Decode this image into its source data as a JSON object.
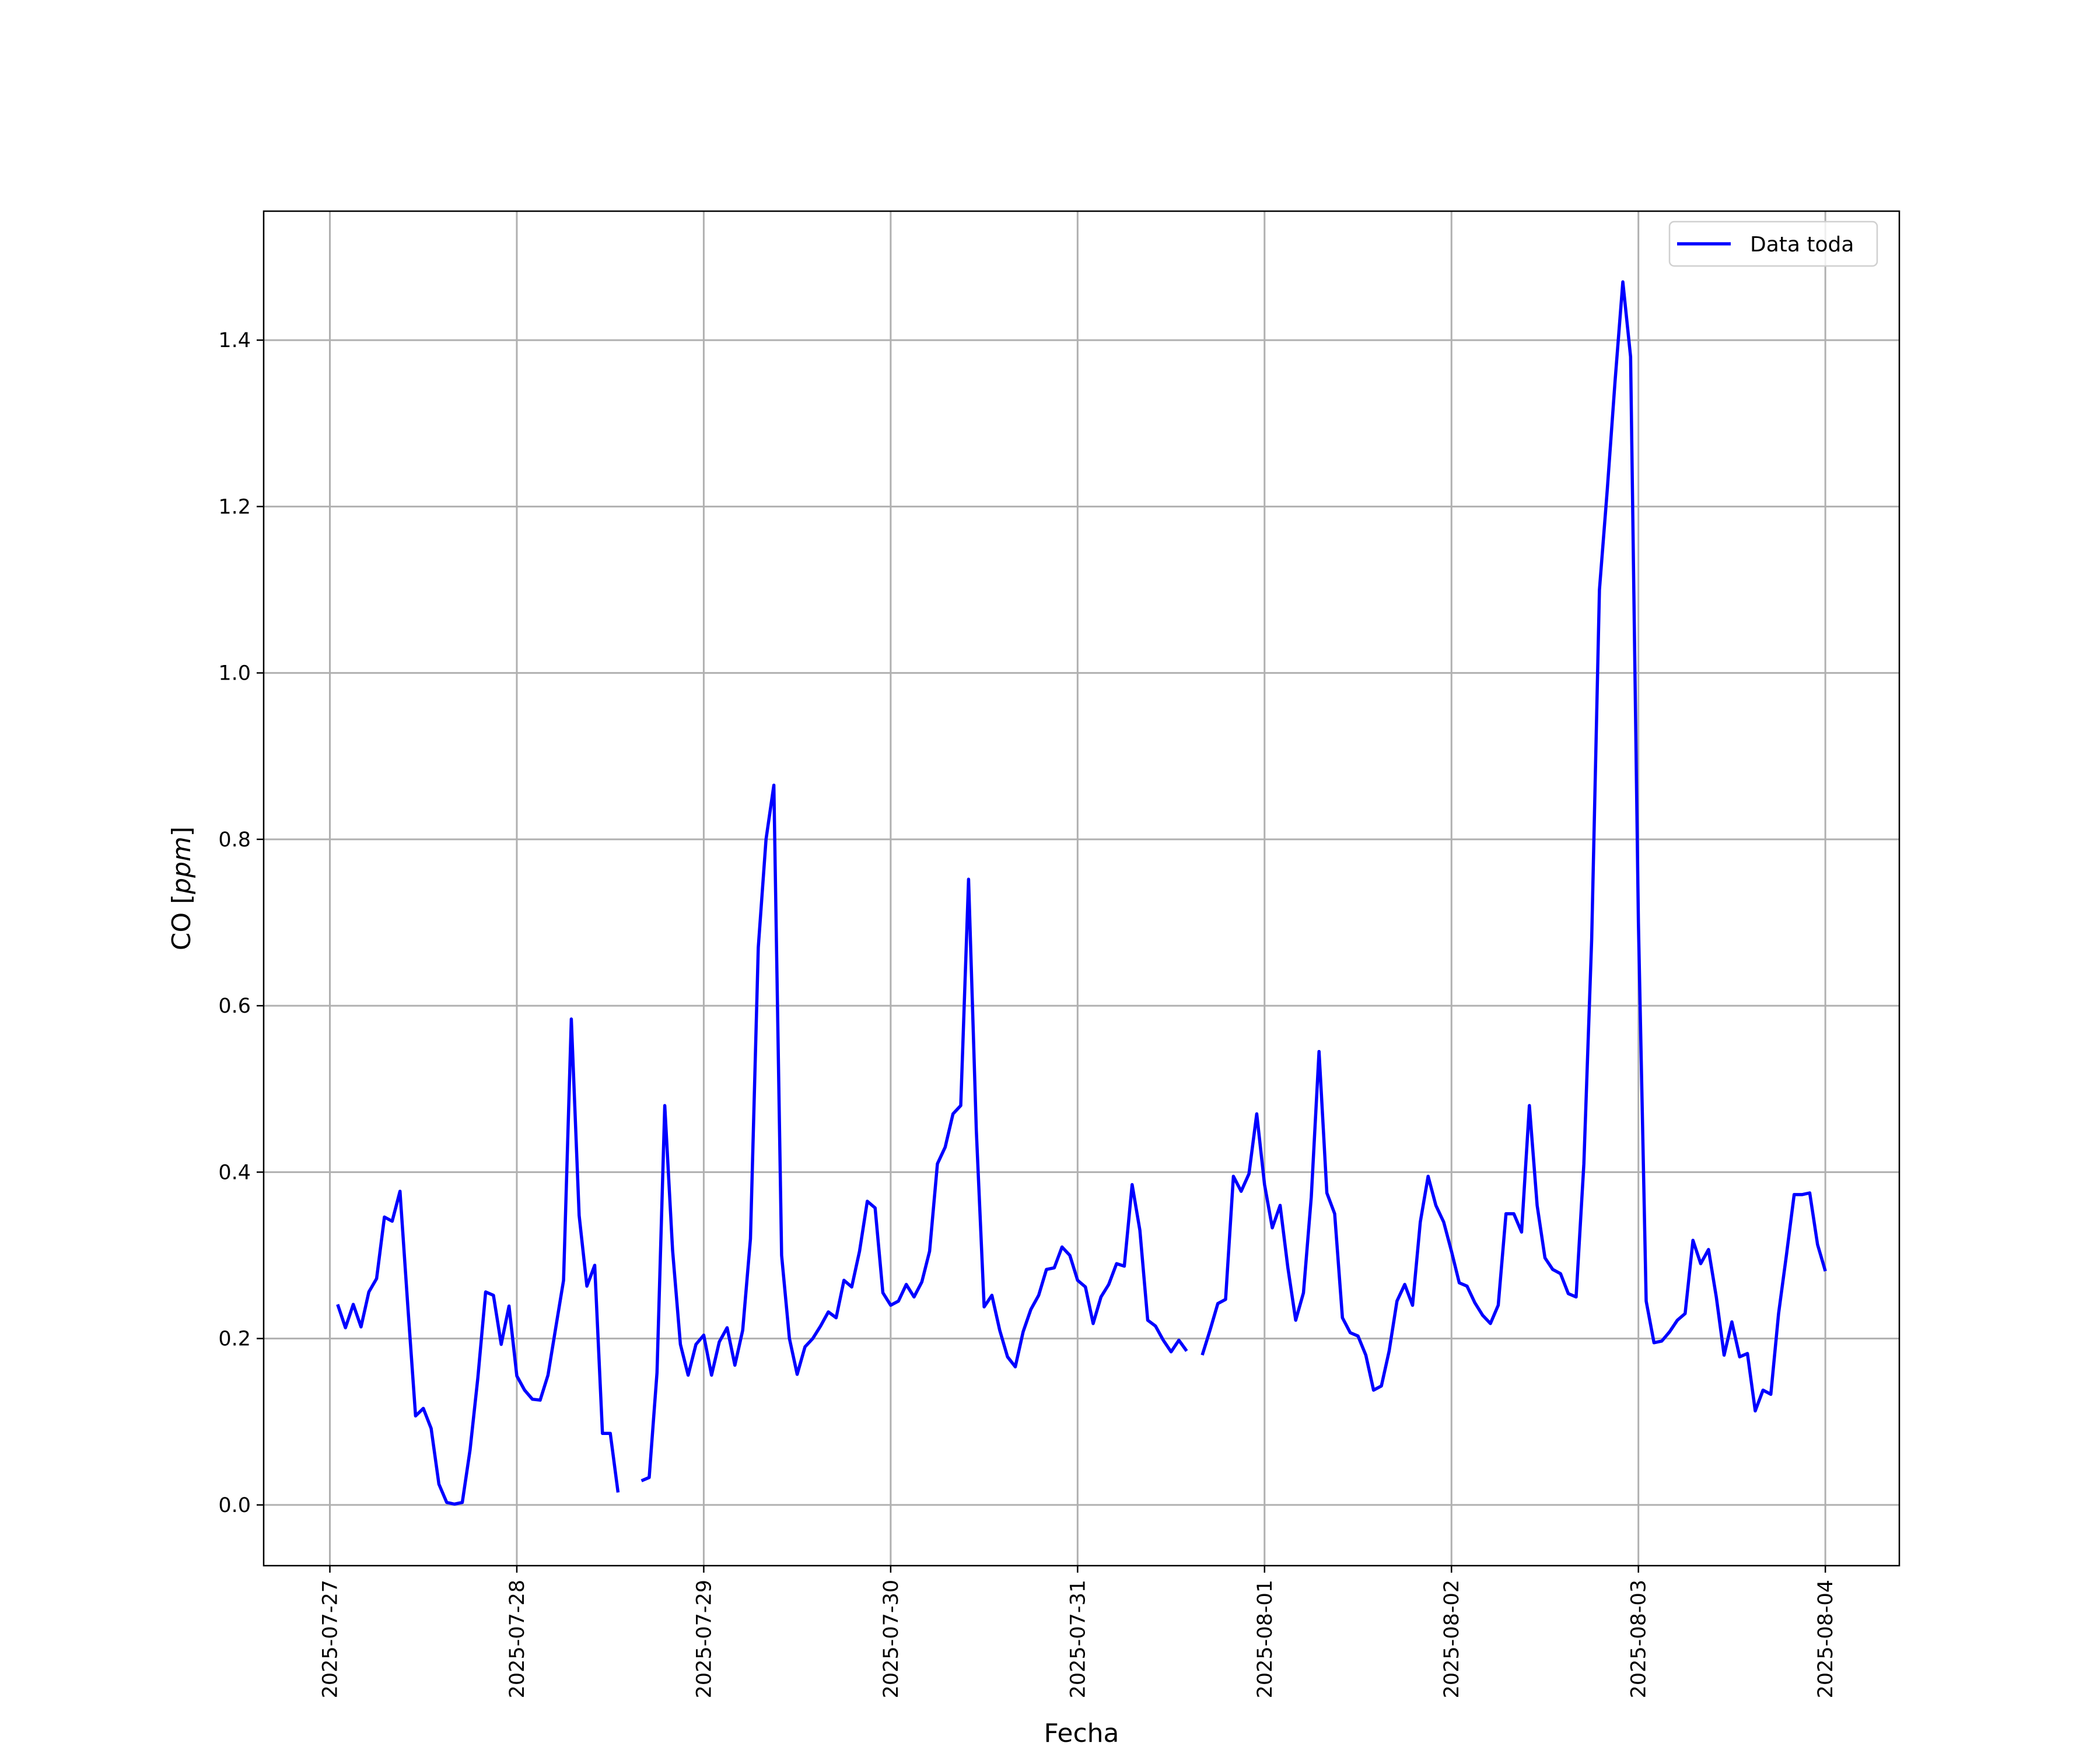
{
  "chart_data": {
    "type": "line",
    "title": "",
    "xlabel": "Fecha",
    "ylabel_main": "CO [",
    "ylabel_unit": "ppm",
    "ylabel_close": "]",
    "xlim": [
      "2025-07-26 15:30",
      "2025-08-04 09:30"
    ],
    "ylim": [
      -0.073,
      1.555
    ],
    "grid": true,
    "legend_position": "top-right",
    "line_color": "#0000ff",
    "grid_color": "#b0b0b0",
    "x_ticks": [
      "2025-07-27",
      "2025-07-28",
      "2025-07-29",
      "2025-07-30",
      "2025-07-31",
      "2025-08-01",
      "2025-08-02",
      "2025-08-03",
      "2025-08-04"
    ],
    "y_ticks": [
      0.0,
      0.2,
      0.4,
      0.6,
      0.8,
      1.0,
      1.2,
      1.4
    ],
    "y_tick_labels": [
      "0.0",
      "0.2",
      "0.4",
      "0.6",
      "0.8",
      "1.0",
      "1.2",
      "1.4"
    ],
    "series": [
      {
        "name": "Data toda",
        "x": [
          "2025-07-27 01:00",
          "2025-07-27 02:00",
          "2025-07-27 03:00",
          "2025-07-27 04:00",
          "2025-07-27 05:00",
          "2025-07-27 06:00",
          "2025-07-27 07:00",
          "2025-07-27 08:00",
          "2025-07-27 09:00",
          "2025-07-27 10:00",
          "2025-07-27 11:00",
          "2025-07-27 12:00",
          "2025-07-27 13:00",
          "2025-07-27 14:00",
          "2025-07-27 15:00",
          "2025-07-27 16:00",
          "2025-07-27 17:00",
          "2025-07-27 18:00",
          "2025-07-27 19:00",
          "2025-07-27 20:00",
          "2025-07-27 21:00",
          "2025-07-27 22:00",
          "2025-07-27 23:00",
          "2025-07-28 00:00",
          "2025-07-28 01:00",
          "2025-07-28 02:00",
          "2025-07-28 03:00",
          "2025-07-28 04:00",
          "2025-07-28 05:00",
          "2025-07-28 06:00",
          "2025-07-28 07:00",
          "2025-07-28 08:00",
          "2025-07-28 09:00",
          "2025-07-28 10:00",
          "2025-07-28 11:00",
          "2025-07-28 12:00",
          "2025-07-28 13:00",
          "2025-07-28 14:00",
          "2025-07-28 15:00",
          "2025-07-28 16:00",
          "2025-07-28 17:00",
          "2025-07-28 18:00",
          "2025-07-28 19:00",
          "2025-07-28 20:00",
          "2025-07-28 21:00",
          "2025-07-28 22:00",
          "2025-07-28 23:00",
          "2025-07-29 00:00",
          "2025-07-29 01:00",
          "2025-07-29 02:00",
          "2025-07-29 03:00",
          "2025-07-29 04:00",
          "2025-07-29 05:00",
          "2025-07-29 06:00",
          "2025-07-29 07:00",
          "2025-07-29 08:00",
          "2025-07-29 09:00",
          "2025-07-29 10:00",
          "2025-07-29 11:00",
          "2025-07-29 12:00",
          "2025-07-29 13:00",
          "2025-07-29 14:00",
          "2025-07-29 15:00",
          "2025-07-29 16:00",
          "2025-07-29 17:00",
          "2025-07-29 18:00",
          "2025-07-29 19:00",
          "2025-07-29 20:00",
          "2025-07-29 21:00",
          "2025-07-29 22:00",
          "2025-07-29 23:00",
          "2025-07-30 00:00",
          "2025-07-30 01:00",
          "2025-07-30 02:00",
          "2025-07-30 03:00",
          "2025-07-30 04:00",
          "2025-07-30 05:00",
          "2025-07-30 06:00",
          "2025-07-30 07:00",
          "2025-07-30 08:00",
          "2025-07-30 09:00",
          "2025-07-30 10:00",
          "2025-07-30 11:00",
          "2025-07-30 12:00",
          "2025-07-30 13:00",
          "2025-07-30 14:00",
          "2025-07-30 15:00",
          "2025-07-30 16:00",
          "2025-07-30 17:00",
          "2025-07-30 18:00",
          "2025-07-30 19:00",
          "2025-07-30 20:00",
          "2025-07-30 21:00",
          "2025-07-30 22:00",
          "2025-07-30 23:00",
          "2025-07-31 00:00",
          "2025-07-31 01:00",
          "2025-07-31 02:00",
          "2025-07-31 03:00",
          "2025-07-31 04:00",
          "2025-07-31 05:00",
          "2025-07-31 06:00",
          "2025-07-31 07:00",
          "2025-07-31 08:00",
          "2025-07-31 09:00",
          "2025-07-31 10:00",
          "2025-07-31 11:00",
          "2025-07-31 12:00",
          "2025-07-31 13:00",
          "2025-07-31 14:00",
          "2025-07-31 15:00",
          "2025-07-31 16:00",
          "2025-07-31 17:00",
          "2025-07-31 18:00",
          "2025-07-31 19:00",
          "2025-07-31 20:00",
          "2025-07-31 21:00",
          "2025-07-31 22:00",
          "2025-07-31 23:00",
          "2025-08-01 00:00",
          "2025-08-01 01:00",
          "2025-08-01 02:00",
          "2025-08-01 03:00",
          "2025-08-01 04:00",
          "2025-08-01 05:00",
          "2025-08-01 06:00",
          "2025-08-01 07:00",
          "2025-08-01 08:00",
          "2025-08-01 09:00",
          "2025-08-01 10:00",
          "2025-08-01 11:00",
          "2025-08-01 12:00",
          "2025-08-01 13:00",
          "2025-08-01 14:00",
          "2025-08-01 15:00",
          "2025-08-01 16:00",
          "2025-08-01 17:00",
          "2025-08-01 18:00",
          "2025-08-01 19:00",
          "2025-08-01 20:00",
          "2025-08-01 21:00",
          "2025-08-01 22:00",
          "2025-08-01 23:00",
          "2025-08-02 00:00",
          "2025-08-02 01:00",
          "2025-08-02 02:00",
          "2025-08-02 03:00",
          "2025-08-02 04:00",
          "2025-08-02 05:00",
          "2025-08-02 06:00",
          "2025-08-02 07:00",
          "2025-08-02 08:00",
          "2025-08-02 09:00",
          "2025-08-02 10:00",
          "2025-08-02 11:00",
          "2025-08-02 12:00",
          "2025-08-02 13:00",
          "2025-08-02 14:00",
          "2025-08-02 15:00",
          "2025-08-02 16:00",
          "2025-08-02 17:00",
          "2025-08-02 18:00",
          "2025-08-02 19:00",
          "2025-08-02 20:00",
          "2025-08-02 21:00",
          "2025-08-02 22:00",
          "2025-08-02 23:00",
          "2025-08-03 00:00",
          "2025-08-03 01:00",
          "2025-08-03 02:00",
          "2025-08-03 03:00",
          "2025-08-03 04:00",
          "2025-08-03 05:00",
          "2025-08-03 06:00",
          "2025-08-03 07:00",
          "2025-08-03 08:00",
          "2025-08-03 09:00",
          "2025-08-03 10:00",
          "2025-08-03 11:00",
          "2025-08-03 12:00",
          "2025-08-03 13:00",
          "2025-08-03 14:00",
          "2025-08-03 15:00",
          "2025-08-03 16:00",
          "2025-08-03 17:00",
          "2025-08-03 18:00",
          "2025-08-03 19:00",
          "2025-08-03 20:00",
          "2025-08-03 21:00",
          "2025-08-03 22:00",
          "2025-08-03 23:00",
          "2025-08-04 00:00"
        ],
        "y": [
          0.241,
          0.213,
          0.241,
          0.214,
          0.256,
          0.272,
          0.346,
          0.341,
          0.377,
          0.24,
          0.107,
          0.116,
          0.092,
          0.025,
          0.003,
          0.001,
          0.003,
          0.066,
          0.153,
          0.256,
          0.252,
          0.193,
          0.239,
          0.155,
          0.138,
          0.127,
          0.126,
          0.156,
          0.213,
          0.27,
          0.584,
          0.348,
          0.263,
          0.288,
          0.086,
          0.086,
          0.015,
          null,
          null,
          0.029,
          0.033,
          0.159,
          0.48,
          0.306,
          0.193,
          0.156,
          0.193,
          0.204,
          0.156,
          0.196,
          0.213,
          0.168,
          0.21,
          0.32,
          0.67,
          0.8,
          0.865,
          0.3,
          0.2,
          0.157,
          0.19,
          0.2,
          0.215,
          0.232,
          0.225,
          0.27,
          0.262,
          0.305,
          0.365,
          0.357,
          0.255,
          0.24,
          0.245,
          0.265,
          0.25,
          0.268,
          0.305,
          0.41,
          0.43,
          0.47,
          0.48,
          0.752,
          0.45,
          0.238,
          0.252,
          0.21,
          0.178,
          0.166,
          0.208,
          0.235,
          0.252,
          0.283,
          0.285,
          0.31,
          0.3,
          0.27,
          0.262,
          0.218,
          0.25,
          0.265,
          0.29,
          0.287,
          0.385,
          0.33,
          0.222,
          0.215,
          0.198,
          0.184,
          0.198,
          0.185,
          null,
          0.18,
          0.21,
          0.242,
          0.247,
          0.395,
          0.377,
          0.398,
          0.47,
          0.385,
          0.333,
          0.36,
          0.285,
          0.222,
          0.255,
          0.37,
          0.545,
          0.375,
          0.35,
          0.225,
          0.207,
          0.203,
          0.18,
          0.138,
          0.143,
          0.185,
          0.245,
          0.265,
          0.24,
          0.34,
          0.395,
          0.36,
          0.34,
          0.305,
          0.267,
          0.263,
          0.243,
          0.228,
          0.218,
          0.24,
          0.35,
          0.35,
          0.328,
          0.48,
          0.36,
          0.297,
          0.283,
          0.278,
          0.254,
          0.25,
          0.41,
          0.68,
          1.1,
          1.22,
          1.35,
          1.47,
          1.38,
          0.7,
          0.245,
          0.195,
          0.197,
          0.208,
          0.222,
          0.23,
          0.318,
          0.29,
          0.307,
          0.25,
          0.18,
          0.22,
          0.178,
          0.182,
          0.113,
          0.138,
          0.133,
          0.23,
          0.3,
          0.373,
          0.373,
          0.375,
          0.313,
          0.281
        ]
      }
    ]
  }
}
